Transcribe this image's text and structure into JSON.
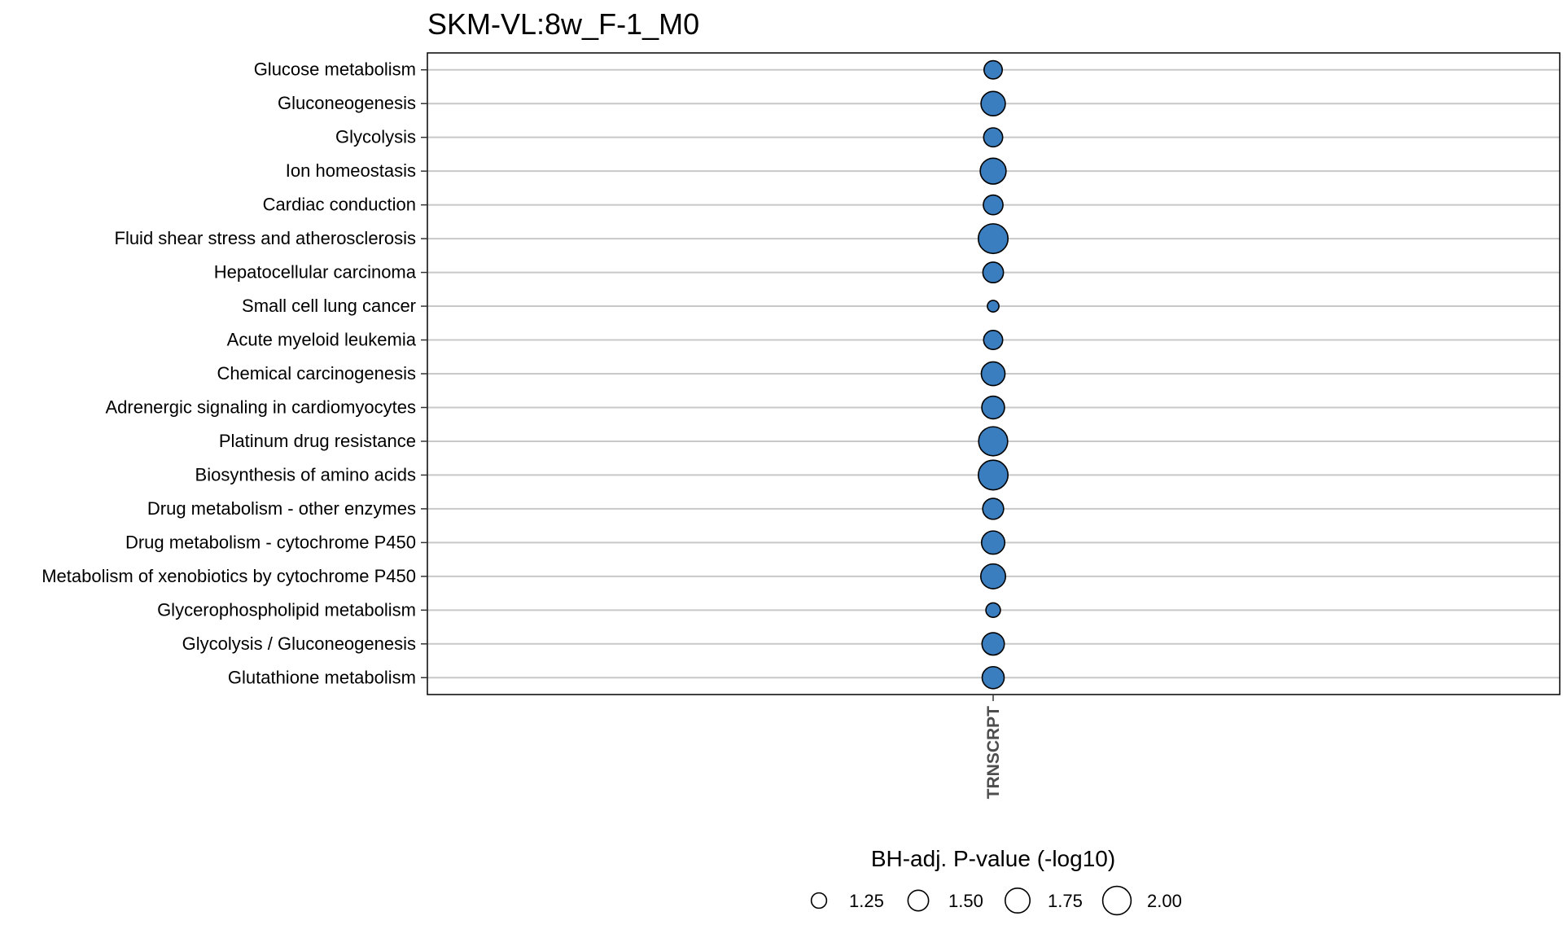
{
  "chart_data": {
    "type": "scatter",
    "title": "SKM-VL:8w_F-1_M0",
    "x_categories": [
      "TRNSCRPT"
    ],
    "y_categories": [
      "Glucose metabolism",
      "Gluconeogenesis",
      "Glycolysis",
      "Ion homeostasis",
      "Cardiac conduction",
      "Fluid shear stress and atherosclerosis",
      "Hepatocellular carcinoma",
      "Small cell lung cancer",
      "Acute myeloid leukemia",
      "Chemical carcinogenesis",
      "Adrenergic signaling in cardiomyocytes",
      "Platinum drug resistance",
      "Biosynthesis of amino acids",
      "Drug metabolism - other enzymes",
      "Drug metabolism - cytochrome P450",
      "Metabolism of xenobiotics by cytochrome P450",
      "Glycerophospholipid metabolism",
      "Glycolysis / Gluconeogenesis",
      "Glutathione metabolism"
    ],
    "points": [
      {
        "x": "TRNSCRPT",
        "y": "Glucose metabolism",
        "size_value": 1.38
      },
      {
        "x": "TRNSCRPT",
        "y": "Gluconeogenesis",
        "size_value": 1.72
      },
      {
        "x": "TRNSCRPT",
        "y": "Glycolysis",
        "size_value": 1.42
      },
      {
        "x": "TRNSCRPT",
        "y": "Ion homeostasis",
        "size_value": 1.82
      },
      {
        "x": "TRNSCRPT",
        "y": "Cardiac conduction",
        "size_value": 1.45
      },
      {
        "x": "TRNSCRPT",
        "y": "Fluid shear stress and atherosclerosis",
        "size_value": 2.1
      },
      {
        "x": "TRNSCRPT",
        "y": "Hepatocellular carcinoma",
        "size_value": 1.5
      },
      {
        "x": "TRNSCRPT",
        "y": "Small cell lung cancer",
        "size_value": 1.12
      },
      {
        "x": "TRNSCRPT",
        "y": "Acute myeloid leukemia",
        "size_value": 1.42
      },
      {
        "x": "TRNSCRPT",
        "y": "Chemical carcinogenesis",
        "size_value": 1.68
      },
      {
        "x": "TRNSCRPT",
        "y": "Adrenergic signaling in cardiomyocytes",
        "size_value": 1.62
      },
      {
        "x": "TRNSCRPT",
        "y": "Platinum drug resistance",
        "size_value": 2.05
      },
      {
        "x": "TRNSCRPT",
        "y": "Biosynthesis of amino acids",
        "size_value": 2.1
      },
      {
        "x": "TRNSCRPT",
        "y": "Drug metabolism - other enzymes",
        "size_value": 1.52
      },
      {
        "x": "TRNSCRPT",
        "y": "Drug metabolism - cytochrome P450",
        "size_value": 1.65
      },
      {
        "x": "TRNSCRPT",
        "y": "Metabolism of xenobiotics by cytochrome P450",
        "size_value": 1.75
      },
      {
        "x": "TRNSCRPT",
        "y": "Glycerophospholipid metabolism",
        "size_value": 1.22
      },
      {
        "x": "TRNSCRPT",
        "y": "Glycolysis / Gluconeogenesis",
        "size_value": 1.6
      },
      {
        "x": "TRNSCRPT",
        "y": "Glutathione metabolism",
        "size_value": 1.58
      }
    ],
    "size_legend": {
      "title": "BH-adj. P-value (-log10)",
      "values": [
        1.25,
        1.5,
        1.75,
        2.0
      ],
      "labels": [
        "1.25",
        "1.50",
        "1.75",
        "2.00"
      ],
      "placement": "bottom"
    },
    "point_fill": "#3a7ebf",
    "point_stroke": "#000000",
    "grid": "horizontal",
    "grid_color": "#c8c8c8"
  }
}
